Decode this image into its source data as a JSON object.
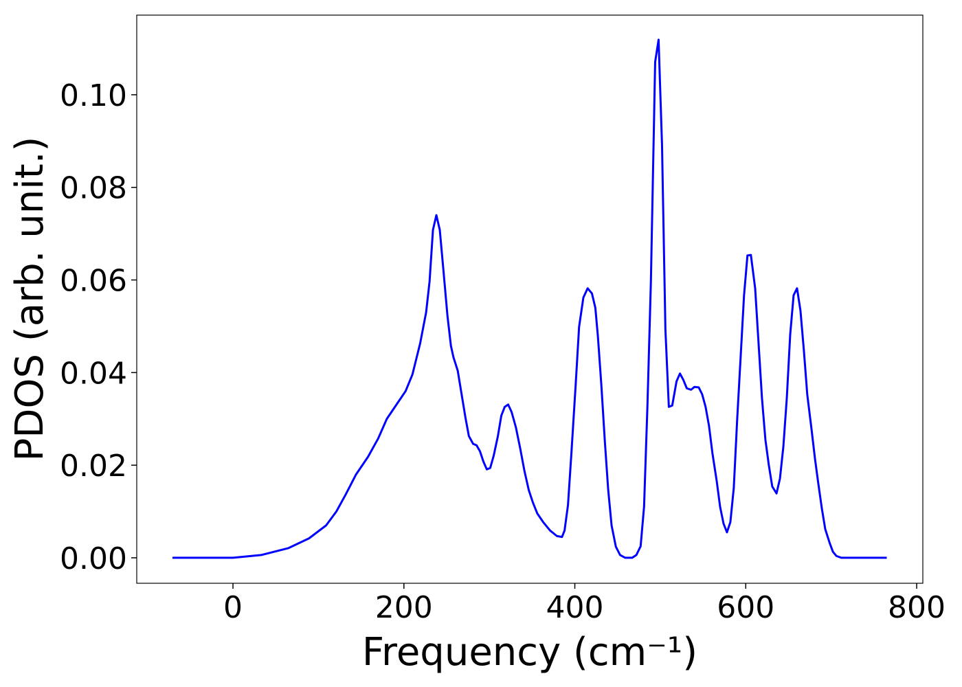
{
  "chart_data": {
    "type": "line",
    "xlabel": "Frequency (cm⁻¹)",
    "ylabel": "PDOS (arb. unit.)",
    "color": "#0000ff",
    "grid": false,
    "xlim": [
      -112.6,
      807.2
    ],
    "ylim": [
      -0.0055,
      0.1172
    ],
    "xticks": [
      0,
      200,
      400,
      600,
      800
    ],
    "yticks": [
      {
        "value": 0,
        "label": "0.00"
      },
      {
        "value": 0.02,
        "label": "0.02"
      },
      {
        "value": 0.04,
        "label": "0.04"
      },
      {
        "value": 0.06,
        "label": "0.06"
      },
      {
        "value": 0.08,
        "label": "0.08"
      },
      {
        "value": 0.1,
        "label": "0.10"
      }
    ],
    "x": [
      -70.8,
      0,
      33,
      65,
      89,
      109,
      121,
      132,
      144,
      158,
      170,
      180,
      191,
      202,
      210,
      219,
      226,
      230,
      234,
      238,
      242,
      246,
      251,
      255,
      258,
      263,
      267,
      272,
      276,
      281,
      285,
      289,
      293,
      297,
      301,
      305,
      310,
      314,
      318,
      322,
      326,
      331,
      336,
      341,
      346,
      351,
      356,
      363,
      371,
      379,
      385,
      388,
      392,
      396,
      401,
      405,
      410,
      415,
      420,
      424,
      427,
      431,
      435,
      439,
      443,
      448,
      453,
      459,
      467,
      472,
      477,
      481,
      485,
      489,
      494,
      498,
      502,
      506,
      510,
      514,
      519,
      523,
      527,
      531,
      536,
      540,
      545,
      549,
      553,
      557,
      561,
      566,
      570,
      574,
      578,
      582,
      586,
      590,
      594,
      598,
      602,
      606,
      611,
      615,
      619,
      623,
      627,
      631,
      636,
      640,
      644,
      648,
      652,
      656,
      660,
      664,
      668,
      672,
      677,
      681,
      685,
      689,
      693,
      698,
      702,
      706,
      712,
      765
    ],
    "values": [
      0,
      0,
      0.0006,
      0.0021,
      0.0042,
      0.007,
      0.01,
      0.0137,
      0.018,
      0.0218,
      0.0258,
      0.03,
      0.033,
      0.036,
      0.0396,
      0.0463,
      0.053,
      0.0596,
      0.0708,
      0.074,
      0.0708,
      0.0626,
      0.0522,
      0.0458,
      0.0433,
      0.0404,
      0.0359,
      0.0303,
      0.0263,
      0.0246,
      0.0243,
      0.023,
      0.0208,
      0.0191,
      0.0194,
      0.022,
      0.0263,
      0.0307,
      0.0326,
      0.0331,
      0.0315,
      0.0282,
      0.0237,
      0.0188,
      0.0147,
      0.0119,
      0.0096,
      0.0077,
      0.0059,
      0.0047,
      0.0045,
      0.0059,
      0.0114,
      0.0226,
      0.0374,
      0.0499,
      0.0562,
      0.0582,
      0.0571,
      0.054,
      0.0478,
      0.0374,
      0.0255,
      0.0148,
      0.007,
      0.0024,
      0.0006,
      0,
      0,
      0.0006,
      0.0025,
      0.011,
      0.033,
      0.0596,
      0.1071,
      0.1119,
      0.0893,
      0.0493,
      0.0326,
      0.0329,
      0.0381,
      0.0398,
      0.0384,
      0.0366,
      0.0363,
      0.0369,
      0.0368,
      0.0353,
      0.0326,
      0.0285,
      0.0226,
      0.0166,
      0.011,
      0.0074,
      0.0055,
      0.0077,
      0.0151,
      0.03,
      0.0433,
      0.0567,
      0.0653,
      0.0654,
      0.0582,
      0.0463,
      0.0344,
      0.0255,
      0.02,
      0.0154,
      0.0139,
      0.0171,
      0.024,
      0.0344,
      0.0482,
      0.0567,
      0.0582,
      0.0534,
      0.0448,
      0.0352,
      0.0277,
      0.0214,
      0.0159,
      0.0107,
      0.0062,
      0.0033,
      0.0013,
      0.0004,
      0,
      0
    ]
  }
}
